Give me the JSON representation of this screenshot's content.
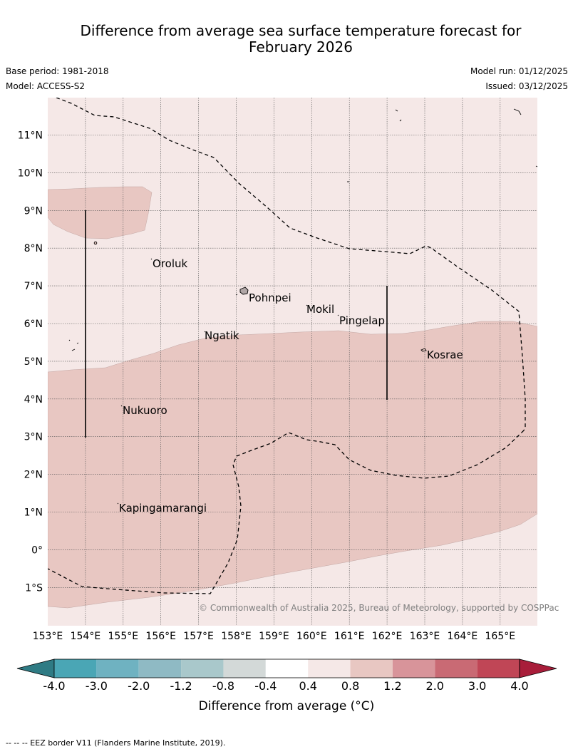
{
  "header": {
    "title_line1": "Difference from average sea surface temperature forecast for",
    "title_line2": "February 2026",
    "base_period": "Base period: 1981-2018",
    "model": "Model: ACCESS-S2",
    "model_run": "Model run: 01/12/2025",
    "issued": "Issued: 03/12/2025"
  },
  "map": {
    "lon_labels": [
      "153°E",
      "154°E",
      "155°E",
      "156°E",
      "157°E",
      "158°E",
      "159°E",
      "160°E",
      "161°E",
      "162°E",
      "163°E",
      "164°E",
      "165°E"
    ],
    "lat_labels": [
      "11°N",
      "10°N",
      "9°N",
      "8°N",
      "7°N",
      "6°N",
      "5°N",
      "4°N",
      "3°N",
      "2°N",
      "1°N",
      "0°",
      "1°S"
    ],
    "places": {
      "oroluk": "Oroluk",
      "pohnpei": "Pohnpei",
      "mokil": "Mokil",
      "pingelap": "Pingelap",
      "ngatik": "Ngatik",
      "kosrae": "Kosrae",
      "nukuoro": "Nukuoro",
      "kapingamarangi": "Kapingamarangi"
    },
    "copyright": "© Commonwealth of Australia 2025, Bureau of Meteorology, supported by COSPPac",
    "colors": {
      "anomaly_0_4_0_8": "#f5e8e7",
      "anomaly_0_8_1_2": "#e8c7c2"
    }
  },
  "colorbar": {
    "ticks": [
      "-4.0",
      "-3.0",
      "-2.0",
      "-1.2",
      "-0.8",
      "-0.4",
      "0.4",
      "0.8",
      "1.2",
      "2.0",
      "3.0",
      "4.0"
    ],
    "colors": [
      "#2f7b84",
      "#4aa6b5",
      "#6fb2c1",
      "#8fbac4",
      "#a9c8cb",
      "#d3d9d8",
      "#ffffff",
      "#f5e8e7",
      "#e8c7c2",
      "#d8949a",
      "#c96a74",
      "#c04656",
      "#a81d3a"
    ],
    "label": "Difference from average (°C)"
  },
  "footer": {
    "eez": "-- -- -- EEZ border V11 (Flanders Marine Institute, 2019)."
  }
}
